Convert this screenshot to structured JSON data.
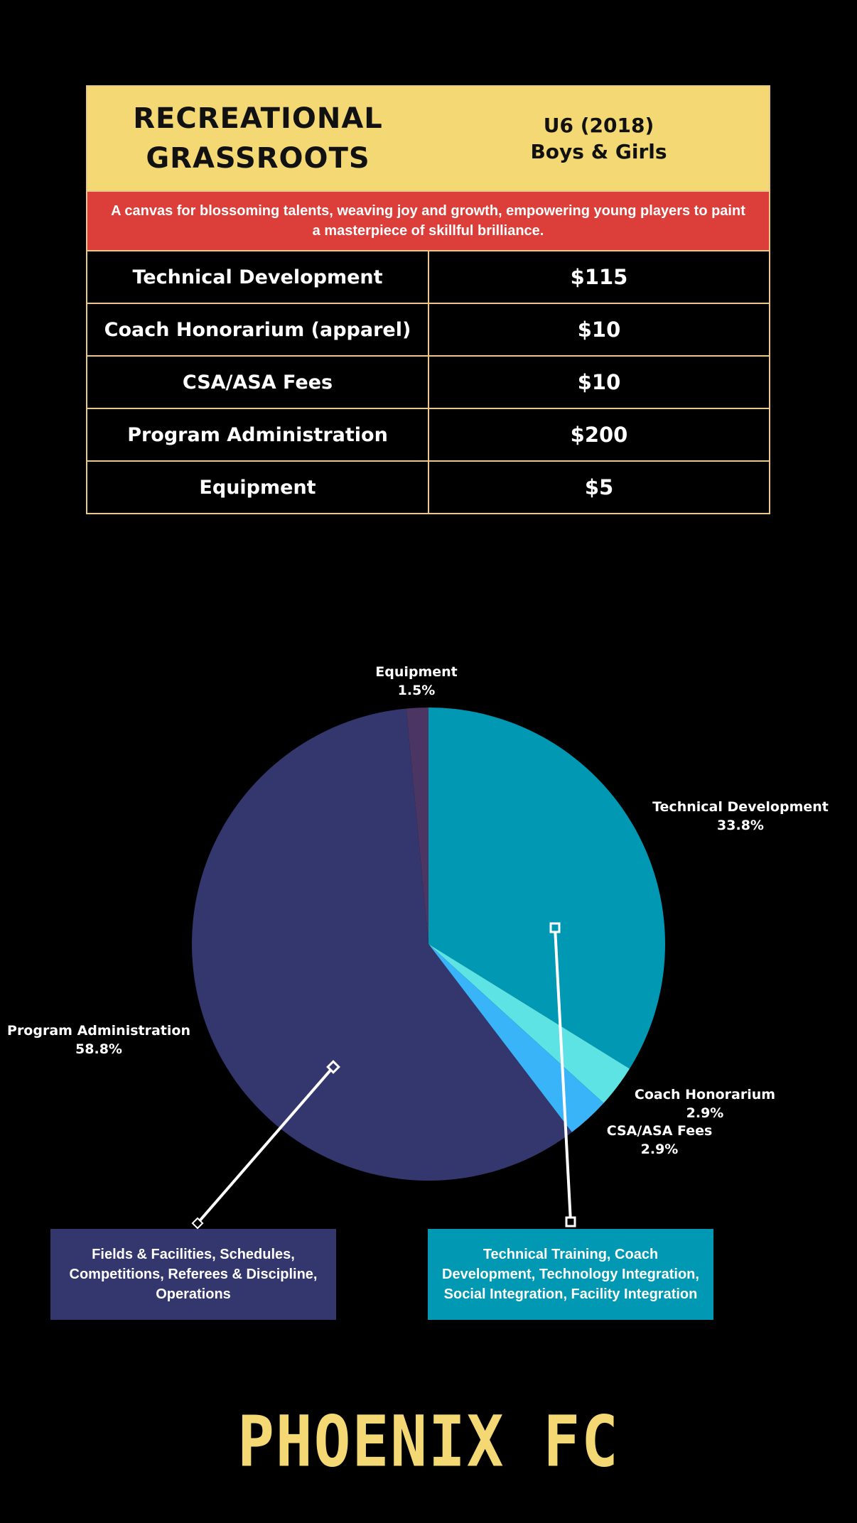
{
  "header": {
    "program_title": "RECREATIONAL\nGRASSROOTS",
    "age_group": "U6 (2018)",
    "gender": "Boys & Girls"
  },
  "tagline": "A canvas for blossoming talents, weaving joy and growth, empowering young players to paint a masterpiece of skillful brilliance.",
  "fees": [
    {
      "item": "Technical Development",
      "amount": "$115"
    },
    {
      "item": "Coach Honorarium (apparel)",
      "amount": "$10"
    },
    {
      "item": "CSA/ASA Fees",
      "amount": "$10"
    },
    {
      "item": "Program Administration",
      "amount": "$200"
    },
    {
      "item": "Equipment",
      "amount": "$5"
    }
  ],
  "chart_data": {
    "type": "pie",
    "title": "",
    "slices": [
      {
        "label": "Technical Development",
        "value": 33.8,
        "display": "33.8%",
        "color": "#0098b3"
      },
      {
        "label": "Coach Honorarium",
        "value": 2.9,
        "display": "2.9%",
        "color": "#5ee3e4"
      },
      {
        "label": "CSA/ASA Fees",
        "value": 2.9,
        "display": "2.9%",
        "color": "#3ab4f8"
      },
      {
        "label": "Program Administration",
        "value": 58.8,
        "display": "58.8%",
        "color": "#33376e"
      },
      {
        "label": "Equipment",
        "value": 1.5,
        "display": "1.5%",
        "color": "#4b3563"
      }
    ]
  },
  "callouts": {
    "admin": "Fields & Facilities, Schedules, Competitions, Referees & Discipline, Operations",
    "tech": "Technical Training, Coach Development, Technology Integration, Social Integration, Facility Integration"
  },
  "brand": "PHOENIX FC"
}
